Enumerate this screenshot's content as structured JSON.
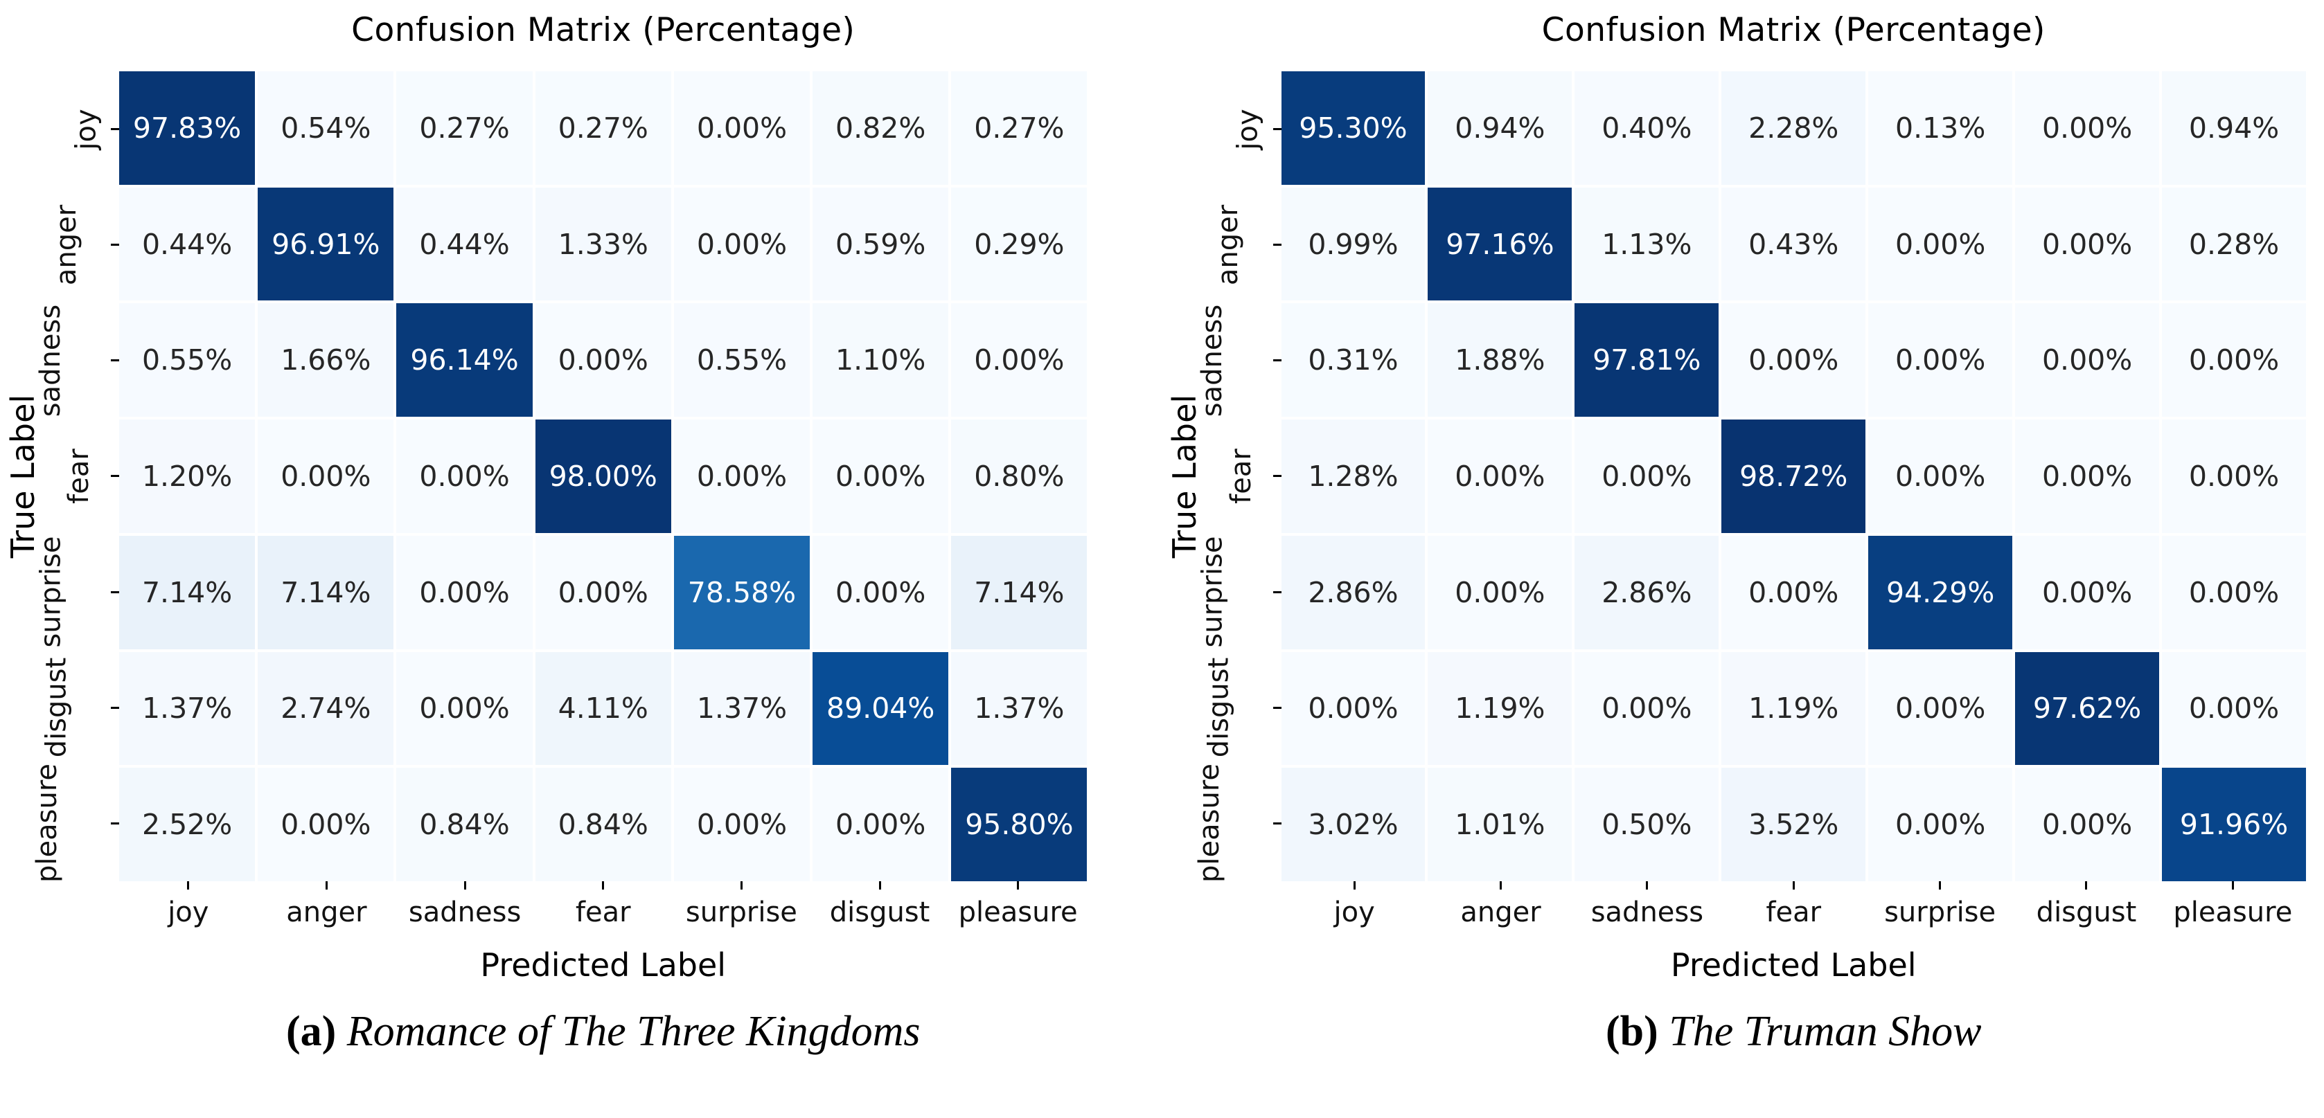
{
  "chart_data": [
    {
      "type": "heatmap",
      "title": "Confusion Matrix (Percentage)",
      "xlabel": "Predicted Label",
      "ylabel": "True Label",
      "categories": [
        "joy",
        "anger",
        "sadness",
        "fear",
        "surprise",
        "disgust",
        "pleasure"
      ],
      "values": [
        [
          97.83,
          0.54,
          0.27,
          0.27,
          0.0,
          0.82,
          0.27
        ],
        [
          0.44,
          96.91,
          0.44,
          1.33,
          0.0,
          0.59,
          0.29
        ],
        [
          0.55,
          1.66,
          96.14,
          0.0,
          0.55,
          1.1,
          0.0
        ],
        [
          1.2,
          0.0,
          0.0,
          98.0,
          0.0,
          0.0,
          0.8
        ],
        [
          7.14,
          7.14,
          0.0,
          0.0,
          78.58,
          0.0,
          7.14
        ],
        [
          1.37,
          2.74,
          0.0,
          4.11,
          1.37,
          89.04,
          1.37
        ],
        [
          2.52,
          0.0,
          0.84,
          0.84,
          0.0,
          0.0,
          95.8
        ]
      ],
      "value_suffix": "%",
      "value_decimals": 2,
      "vmin": 0,
      "vmax": 100,
      "colormap": "Blues",
      "legend": "none",
      "grid": false,
      "caption_prefix": "(a)",
      "caption": "Romance of The Three Kingdoms"
    },
    {
      "type": "heatmap",
      "title": "Confusion Matrix (Percentage)",
      "xlabel": "Predicted Label",
      "ylabel": "True Label",
      "categories": [
        "joy",
        "anger",
        "sadness",
        "fear",
        "surprise",
        "disgust",
        "pleasure"
      ],
      "values": [
        [
          95.3,
          0.94,
          0.4,
          2.28,
          0.13,
          0.0,
          0.94
        ],
        [
          0.99,
          97.16,
          1.13,
          0.43,
          0.0,
          0.0,
          0.28
        ],
        [
          0.31,
          1.88,
          97.81,
          0.0,
          0.0,
          0.0,
          0.0
        ],
        [
          1.28,
          0.0,
          0.0,
          98.72,
          0.0,
          0.0,
          0.0
        ],
        [
          2.86,
          0.0,
          2.86,
          0.0,
          94.29,
          0.0,
          0.0
        ],
        [
          0.0,
          1.19,
          0.0,
          1.19,
          0.0,
          97.62,
          0.0
        ],
        [
          3.02,
          1.01,
          0.5,
          3.52,
          0.0,
          0.0,
          91.96
        ]
      ],
      "value_suffix": "%",
      "value_decimals": 2,
      "vmin": 0,
      "vmax": 100,
      "colormap": "Blues",
      "legend": "none",
      "grid": false,
      "caption_prefix": "(b)",
      "caption": "The Truman Show"
    }
  ],
  "colors": {
    "background": "#ffffff",
    "cell_text_dark": "#262626",
    "cell_text_light": "#ffffff",
    "tick_color": "#000000",
    "blues_stops": [
      [
        247,
        251,
        255
      ],
      [
        222,
        235,
        247
      ],
      [
        198,
        219,
        239
      ],
      [
        158,
        202,
        225
      ],
      [
        107,
        174,
        214
      ],
      [
        66,
        146,
        198
      ],
      [
        33,
        113,
        181
      ],
      [
        8,
        81,
        156
      ],
      [
        8,
        48,
        107
      ]
    ]
  }
}
